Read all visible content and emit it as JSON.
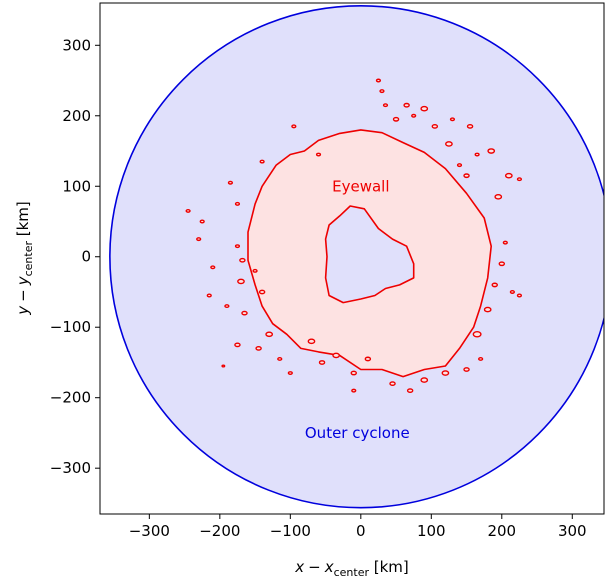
{
  "chart_data": {
    "type": "area",
    "xlabel": {
      "var": "x",
      "minus": "−",
      "sym": "x",
      "sub": "center",
      "unit": " [km]"
    },
    "ylabel": {
      "var": "y",
      "minus": "−",
      "sym": "y",
      "sub": "center",
      "unit": " [km]"
    },
    "xlim": [
      -370,
      345
    ],
    "ylim": [
      -365,
      360
    ],
    "xticks": [
      -300,
      -200,
      -100,
      0,
      100,
      200,
      300
    ],
    "yticks": [
      -300,
      -200,
      -100,
      0,
      100,
      200,
      300
    ],
    "xtick_labels": [
      "−300",
      "−200",
      "−100",
      "0",
      "100",
      "200",
      "300"
    ],
    "ytick_labels": [
      "−300",
      "−200",
      "−100",
      "0",
      "100",
      "200",
      "300"
    ],
    "grid": false,
    "outer_cyclone": {
      "label": "Outer cyclone",
      "color": "#0000dd",
      "fill": "#e0e0fb",
      "center": [
        0,
        0
      ],
      "radius_km": 356,
      "label_pos": [
        -5,
        -250
      ]
    },
    "eyewall": {
      "label": "Eyewall",
      "color": "#ee0000",
      "fill": "#fde2e2",
      "label_pos": [
        0,
        100
      ],
      "outer": [
        [
          -150,
          75
        ],
        [
          -140,
          100
        ],
        [
          -120,
          130
        ],
        [
          -100,
          145
        ],
        [
          -80,
          150
        ],
        [
          -60,
          165
        ],
        [
          -30,
          175
        ],
        [
          0,
          180
        ],
        [
          30,
          176
        ],
        [
          60,
          162
        ],
        [
          90,
          148
        ],
        [
          120,
          125
        ],
        [
          150,
          90
        ],
        [
          175,
          55
        ],
        [
          185,
          15
        ],
        [
          180,
          -30
        ],
        [
          170,
          -70
        ],
        [
          160,
          -100
        ],
        [
          140,
          -130
        ],
        [
          120,
          -155
        ],
        [
          90,
          -160
        ],
        [
          60,
          -170
        ],
        [
          30,
          -160
        ],
        [
          0,
          -160
        ],
        [
          -30,
          -140
        ],
        [
          -60,
          -135
        ],
        [
          -85,
          -130
        ],
        [
          -105,
          -110
        ],
        [
          -125,
          -95
        ],
        [
          -140,
          -70
        ],
        [
          -150,
          -40
        ],
        [
          -160,
          -5
        ],
        [
          -160,
          35
        ]
      ],
      "hole": [
        [
          -45,
          45
        ],
        [
          -30,
          58
        ],
        [
          -15,
          72
        ],
        [
          5,
          68
        ],
        [
          25,
          40
        ],
        [
          45,
          25
        ],
        [
          65,
          15
        ],
        [
          75,
          -10
        ],
        [
          75,
          -30
        ],
        [
          55,
          -40
        ],
        [
          35,
          -45
        ],
        [
          20,
          -55
        ],
        [
          0,
          -60
        ],
        [
          -25,
          -65
        ],
        [
          -45,
          -55
        ],
        [
          -50,
          -30
        ],
        [
          -48,
          0
        ],
        [
          -50,
          25
        ]
      ],
      "fragments": [
        {
          "c": [
            -245,
            65
          ],
          "r": 3
        },
        {
          "c": [
            -225,
            50
          ],
          "r": 3
        },
        {
          "c": [
            -230,
            25
          ],
          "r": 3
        },
        {
          "c": [
            -210,
            -15
          ],
          "r": 3
        },
        {
          "c": [
            -215,
            -55
          ],
          "r": 3
        },
        {
          "c": [
            -190,
            -70
          ],
          "r": 3
        },
        {
          "c": [
            -195,
            -155
          ],
          "r": 2
        },
        {
          "c": [
            -175,
            -125
          ],
          "r": 4
        },
        {
          "c": [
            -165,
            -80
          ],
          "r": 4
        },
        {
          "c": [
            -170,
            -35
          ],
          "r": 5
        },
        {
          "c": [
            -168,
            -5
          ],
          "r": 4
        },
        {
          "c": [
            -185,
            105
          ],
          "r": 3
        },
        {
          "c": [
            -175,
            15
          ],
          "r": 3
        },
        {
          "c": [
            -145,
            -130
          ],
          "r": 4
        },
        {
          "c": [
            -130,
            -110
          ],
          "r": 5
        },
        {
          "c": [
            -115,
            -145
          ],
          "r": 3
        },
        {
          "c": [
            -100,
            -165
          ],
          "r": 3
        },
        {
          "c": [
            -70,
            -120
          ],
          "r": 5
        },
        {
          "c": [
            -55,
            -150
          ],
          "r": 4
        },
        {
          "c": [
            -35,
            -140
          ],
          "r": 5
        },
        {
          "c": [
            -10,
            -165
          ],
          "r": 4
        },
        {
          "c": [
            10,
            -145
          ],
          "r": 4
        },
        {
          "c": [
            -10,
            -190
          ],
          "r": 3
        },
        {
          "c": [
            45,
            -180
          ],
          "r": 4
        },
        {
          "c": [
            70,
            -190
          ],
          "r": 4
        },
        {
          "c": [
            90,
            -175
          ],
          "r": 5
        },
        {
          "c": [
            120,
            -165
          ],
          "r": 5
        },
        {
          "c": [
            150,
            -160
          ],
          "r": 4
        },
        {
          "c": [
            170,
            -145
          ],
          "r": 3
        },
        {
          "c": [
            165,
            -110
          ],
          "r": 6
        },
        {
          "c": [
            180,
            -75
          ],
          "r": 5
        },
        {
          "c": [
            190,
            -40
          ],
          "r": 4
        },
        {
          "c": [
            200,
            -10
          ],
          "r": 4
        },
        {
          "c": [
            205,
            20
          ],
          "r": 3
        },
        {
          "c": [
            215,
            -50
          ],
          "r": 3
        },
        {
          "c": [
            225,
            -55
          ],
          "r": 3
        },
        {
          "c": [
            195,
            85
          ],
          "r": 5
        },
        {
          "c": [
            210,
            115
          ],
          "r": 5
        },
        {
          "c": [
            225,
            110
          ],
          "r": 3
        },
        {
          "c": [
            185,
            150
          ],
          "r": 5
        },
        {
          "c": [
            165,
            145
          ],
          "r": 3
        },
        {
          "c": [
            150,
            115
          ],
          "r": 4
        },
        {
          "c": [
            140,
            130
          ],
          "r": 3
        },
        {
          "c": [
            125,
            160
          ],
          "r": 5
        },
        {
          "c": [
            105,
            185
          ],
          "r": 4
        },
        {
          "c": [
            90,
            210
          ],
          "r": 5
        },
        {
          "c": [
            65,
            215
          ],
          "r": 4
        },
        {
          "c": [
            50,
            195
          ],
          "r": 4
        },
        {
          "c": [
            35,
            215
          ],
          "r": 3
        },
        {
          "c": [
            30,
            235
          ],
          "r": 3
        },
        {
          "c": [
            25,
            250
          ],
          "r": 3
        },
        {
          "c": [
            75,
            200
          ],
          "r": 3
        },
        {
          "c": [
            155,
            185
          ],
          "r": 4
        },
        {
          "c": [
            130,
            195
          ],
          "r": 3
        },
        {
          "c": [
            -95,
            185
          ],
          "r": 3
        },
        {
          "c": [
            -140,
            135
          ],
          "r": 3
        },
        {
          "c": [
            -175,
            75
          ],
          "r": 3
        },
        {
          "c": [
            -60,
            145
          ],
          "r": 3
        },
        {
          "c": [
            -150,
            -20
          ],
          "r": 3
        },
        {
          "c": [
            -140,
            -50
          ],
          "r": 4
        }
      ]
    }
  }
}
